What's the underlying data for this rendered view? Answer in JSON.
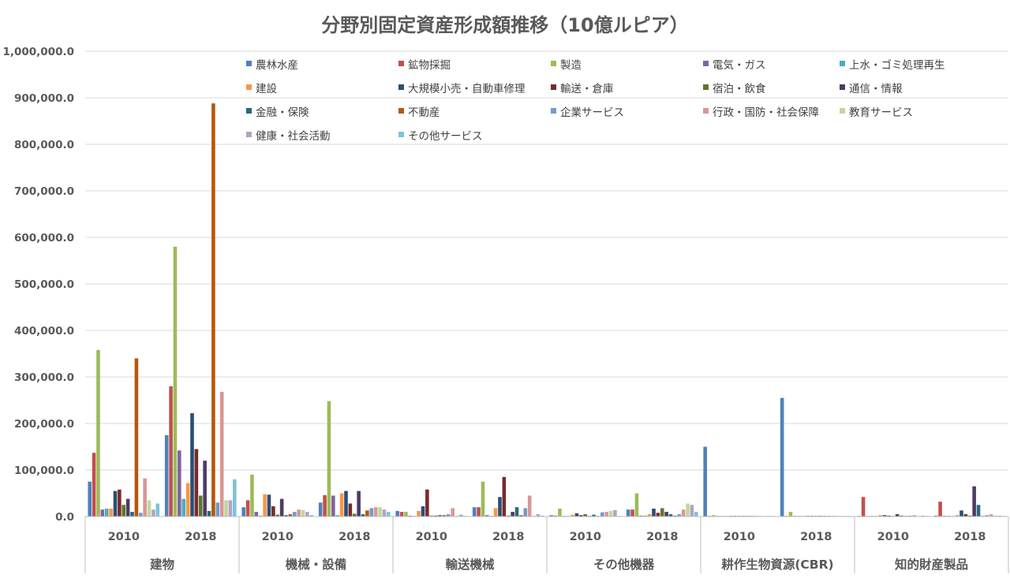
{
  "chart_data": {
    "type": "bar",
    "title": "分野別固定資産形成額推移（10億ルピア）",
    "xlabel": "",
    "ylabel": "",
    "ylim": [
      0,
      1000000
    ],
    "yticks": [
      "0.0",
      "100,000.0",
      "200,000.0",
      "300,000.0",
      "400,000.0",
      "500,000.0",
      "600,000.0",
      "700,000.0",
      "800,000.0",
      "900,000.0",
      "1,000,000.0"
    ],
    "grid": true,
    "legend_position": "top",
    "groups": [
      "建物",
      "機械・設備",
      "輸送機械",
      "その他機器",
      "耕作生物資源(CBR)",
      "知的財産製品"
    ],
    "years": [
      "2010",
      "2018"
    ],
    "categories": [
      "建物 2010",
      "建物 2018",
      "機械・設備 2010",
      "機械・設備 2018",
      "輸送機械 2010",
      "輸送機械 2018",
      "その他機器 2010",
      "その他機器 2018",
      "耕作生物資源(CBR) 2010",
      "耕作生物資源(CBR) 2018",
      "知的財産製品 2010",
      "知的財産製品 2018"
    ],
    "series": [
      {
        "name": "農林水産",
        "color": "#4F81BD",
        "values": [
          75000,
          175000,
          20000,
          30000,
          12000,
          20000,
          3000,
          15000,
          150000,
          255000,
          1000,
          2000
        ]
      },
      {
        "name": "鉱物採掘",
        "color": "#C0504D",
        "values": [
          137000,
          280000,
          35000,
          46000,
          10000,
          20000,
          2000,
          15000,
          1000,
          1000,
          42000,
          32000
        ]
      },
      {
        "name": "製造",
        "color": "#9BBB59",
        "values": [
          358000,
          580000,
          90000,
          248000,
          10000,
          75000,
          17000,
          50000,
          3000,
          10000,
          1000,
          2000
        ]
      },
      {
        "name": "電気・ガス",
        "color": "#8064A2",
        "values": [
          15000,
          142000,
          10000,
          45000,
          2000,
          3000,
          1000,
          2000,
          500,
          500,
          1000,
          1000
        ]
      },
      {
        "name": "上水・ゴミ処理再生",
        "color": "#4BACC6",
        "values": [
          17000,
          38000,
          2000,
          3000,
          1000,
          1000,
          1000,
          2000,
          500,
          500,
          500,
          1000
        ]
      },
      {
        "name": "建設",
        "color": "#F79646",
        "values": [
          17000,
          72000,
          48000,
          50000,
          12000,
          18000,
          4000,
          5000,
          500,
          500,
          3000,
          3000
        ]
      },
      {
        "name": "大規模小売・自動車修理",
        "color": "#2C4D75",
        "values": [
          55000,
          222000,
          47000,
          55000,
          22000,
          42000,
          7000,
          17000,
          500,
          500,
          3000,
          13000
        ]
      },
      {
        "name": "輸送・倉庫",
        "color": "#772C2A",
        "values": [
          58000,
          145000,
          22000,
          28000,
          58000,
          85000,
          3000,
          8000,
          500,
          500,
          2000,
          5000
        ]
      },
      {
        "name": "宿泊・飲食",
        "color": "#5F7530",
        "values": [
          25000,
          45000,
          4000,
          6000,
          2000,
          2000,
          5000,
          18000,
          500,
          500,
          500,
          2000
        ]
      },
      {
        "name": "通信・情報",
        "color": "#4D3B62",
        "values": [
          38000,
          120000,
          38000,
          55000,
          2000,
          10000,
          1000,
          10000,
          500,
          500,
          5000,
          65000
        ]
      },
      {
        "name": "金融・保険",
        "color": "#276A7C",
        "values": [
          10000,
          12000,
          3000,
          5000,
          3000,
          20000,
          4000,
          5000,
          500,
          500,
          2000,
          25000
        ]
      },
      {
        "name": "不動産",
        "color": "#B65708",
        "values": [
          340000,
          888000,
          5000,
          13000,
          3000,
          3000,
          1000,
          2000,
          500,
          500,
          500,
          1000
        ]
      },
      {
        "name": "企業サービス",
        "color": "#729ACA",
        "values": [
          8000,
          30000,
          10000,
          18000,
          5000,
          18000,
          9000,
          5000,
          500,
          500,
          2000,
          3000
        ]
      },
      {
        "name": "行政・国防・社会保障",
        "color": "#D99694",
        "values": [
          82000,
          268000,
          15000,
          20000,
          18000,
          45000,
          10000,
          15000,
          500,
          500,
          3000,
          5000
        ]
      },
      {
        "name": "教育サービス",
        "color": "#C3D69B",
        "values": [
          35000,
          35000,
          14000,
          20000,
          2000,
          2000,
          12000,
          28000,
          500,
          500,
          1000,
          2000
        ]
      },
      {
        "name": "健康・社会活動",
        "color": "#B3A2C7",
        "values": [
          15000,
          35000,
          10000,
          15000,
          4000,
          5000,
          14000,
          25000,
          500,
          500,
          2000,
          2000
        ]
      },
      {
        "name": "その他サービス",
        "color": "#7DC3D9",
        "values": [
          28000,
          80000,
          3000,
          10000,
          1000,
          2000,
          1000,
          10000,
          500,
          500,
          500,
          1000
        ]
      }
    ]
  }
}
